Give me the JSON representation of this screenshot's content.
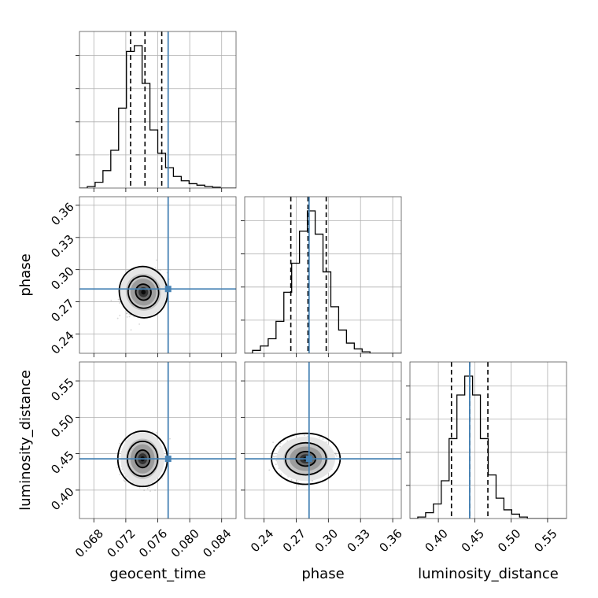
{
  "chart_data": {
    "type": "corner",
    "parameters": [
      {
        "key": "geocent_time",
        "label": "geocent_time",
        "range": [
          0.0662,
          0.0858
        ],
        "ticks": [
          0.068,
          0.072,
          0.076,
          0.08,
          0.084
        ],
        "tick_labels": [
          "0.068",
          "0.072",
          "0.076",
          "0.080",
          "0.084"
        ],
        "truth": 0.0773,
        "quantiles": [
          0.0726,
          0.0744,
          0.0765
        ],
        "hist_edges_start": 0.0662,
        "hist_bin_width": 0.00098,
        "hist_counts": [
          0.0,
          0.01,
          0.04,
          0.12,
          0.26,
          0.55,
          0.94,
          0.98,
          0.72,
          0.4,
          0.24,
          0.14,
          0.08,
          0.05,
          0.03,
          0.02,
          0.01,
          0.005,
          0.0,
          0.0
        ]
      },
      {
        "key": "phase",
        "label": "phase",
        "range": [
          0.222,
          0.368
        ],
        "ticks": [
          0.24,
          0.27,
          0.3,
          0.33,
          0.36
        ],
        "tick_labels": [
          "0.24",
          "0.27",
          "0.30",
          "0.33",
          "0.36"
        ],
        "truth": 0.282,
        "quantiles": [
          0.265,
          0.281,
          0.298
        ],
        "hist_edges_start": 0.222,
        "hist_bin_width": 0.0073,
        "hist_counts": [
          0.0,
          0.02,
          0.05,
          0.1,
          0.22,
          0.42,
          0.62,
          0.84,
          0.98,
          0.82,
          0.56,
          0.32,
          0.16,
          0.07,
          0.03,
          0.01,
          0.0,
          0.0,
          0.0,
          0.0
        ]
      },
      {
        "key": "luminosity_distance",
        "label": "luminosity_distance",
        "range": [
          0.361,
          0.576
        ],
        "ticks": [
          0.4,
          0.45,
          0.5,
          0.55
        ],
        "tick_labels": [
          "0.40",
          "0.45",
          "0.50",
          "0.55"
        ],
        "truth": 0.443,
        "quantiles": [
          0.418,
          0.443,
          0.468
        ],
        "hist_edges_start": 0.361,
        "hist_bin_width": 0.01075,
        "hist_counts": [
          0.0,
          0.01,
          0.04,
          0.1,
          0.26,
          0.55,
          0.85,
          0.98,
          0.85,
          0.55,
          0.3,
          0.14,
          0.06,
          0.03,
          0.01,
          0.0,
          0.0,
          0.0,
          0.0,
          0.0
        ]
      }
    ],
    "pairs": [
      {
        "x": "geocent_time",
        "y": "phase",
        "center": [
          0.0742,
          0.279
        ],
        "contour_radii": [
          [
            0.00095,
            0.0075,
            0.35
          ],
          [
            0.0019,
            0.015,
            0.35
          ],
          [
            0.003,
            0.024,
            0.35
          ]
        ]
      },
      {
        "x": "geocent_time",
        "y": "luminosity_distance",
        "center": [
          0.0741,
          0.443
        ],
        "contour_radii": [
          [
            0.0009,
            0.012,
            0.0
          ],
          [
            0.0019,
            0.024,
            0.0
          ],
          [
            0.0031,
            0.038,
            0.0
          ]
        ]
      },
      {
        "x": "phase",
        "y": "luminosity_distance",
        "center": [
          0.279,
          0.443
        ],
        "contour_radii": [
          [
            0.009,
            0.01,
            0.0
          ],
          [
            0.019,
            0.022,
            0.0
          ],
          [
            0.032,
            0.035,
            0.0
          ]
        ]
      }
    ],
    "grid": true,
    "colors": {
      "truth": "#4682b4",
      "contour": "#000000",
      "hist": "#000000",
      "samples": "#808080"
    }
  }
}
